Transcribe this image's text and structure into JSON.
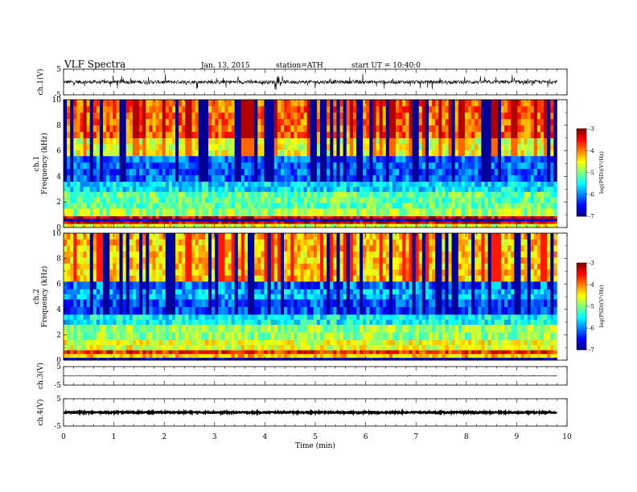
{
  "header": {
    "title": "VLF Spectra",
    "date": "Jan. 13, 2015",
    "station": "station=ATH",
    "start": "start UT =  10:40:0"
  },
  "chart_data": [
    {
      "type": "line",
      "ylabel": "ch.1(V)",
      "ylim": [
        -5,
        5
      ],
      "yticks": [
        "5",
        "-5"
      ],
      "xlim": [
        0,
        10
      ],
      "x_end_min": 9.8,
      "series": [
        {
          "values_description_free": true,
          "baseline": 0,
          "noise_amp": 0.7,
          "spike_amp": 2.8
        }
      ]
    },
    {
      "type": "heatmap",
      "ylabel": "ch.1\nFrequency  (kHz)",
      "ylim": [
        0,
        10
      ],
      "yticks": [
        "0",
        "2",
        "4",
        "6",
        "8",
        "10"
      ],
      "xlim": [
        0,
        10
      ],
      "x_end_min": 9.8,
      "colorbar": {
        "label": "log(PSD)(V²/Hz)",
        "range": [
          -7,
          -3
        ],
        "ticks": [
          "-3",
          "-4",
          "-5",
          "-6",
          "-7"
        ]
      },
      "bands": [
        {
          "f": [
            0,
            0.3
          ],
          "level": -4.6
        },
        {
          "f": [
            0.3,
            0.5
          ],
          "level": -3.3
        },
        {
          "f": [
            0.5,
            0.7
          ],
          "level": -6.8
        },
        {
          "f": [
            0.7,
            0.9
          ],
          "level": -3.4
        },
        {
          "f": [
            0.9,
            1.5
          ],
          "level": -4.9
        },
        {
          "f": [
            1.5,
            2.8
          ],
          "level": -5.1
        },
        {
          "f": [
            2.8,
            3.6
          ],
          "level": -5.6
        },
        {
          "f": [
            3.6,
            5.6
          ],
          "level": -6.1
        },
        {
          "f": [
            5.6,
            7.0
          ],
          "level": -4.6
        },
        {
          "f": [
            7.0,
            10.0
          ],
          "level": -3.9
        }
      ]
    },
    {
      "type": "heatmap",
      "ylabel": "ch.2\nFrequency  (kHz)",
      "ylim": [
        0,
        10
      ],
      "yticks": [
        "0",
        "2",
        "4",
        "6",
        "8",
        "10"
      ],
      "xlim": [
        0,
        10
      ],
      "x_end_min": 9.8,
      "colorbar": {
        "label": "log(PSD)(V²/Hz)",
        "range": [
          -7,
          -3
        ],
        "ticks": [
          "-3",
          "-4",
          "-5",
          "-6",
          "-7"
        ]
      },
      "bands": [
        {
          "f": [
            0,
            0.2
          ],
          "level": -6.8
        },
        {
          "f": [
            0.2,
            0.5
          ],
          "level": -4.3
        },
        {
          "f": [
            0.5,
            0.8
          ],
          "level": -3.6
        },
        {
          "f": [
            0.8,
            1.6
          ],
          "level": -4.6
        },
        {
          "f": [
            1.6,
            2.8
          ],
          "level": -4.9
        },
        {
          "f": [
            2.8,
            3.6
          ],
          "level": -5.5
        },
        {
          "f": [
            3.6,
            4.8
          ],
          "level": -6.2
        },
        {
          "f": [
            4.8,
            5.6
          ],
          "level": -5.8
        },
        {
          "f": [
            5.6,
            6.2
          ],
          "level": -6.3
        },
        {
          "f": [
            6.2,
            10.0
          ],
          "level": -4.3
        }
      ]
    },
    {
      "type": "line",
      "ylabel": "ch.3(V)",
      "ylim": [
        -5,
        5
      ],
      "yticks": [
        "5",
        "-5"
      ],
      "xlim": [
        0,
        10
      ],
      "x_end_min": 9.8,
      "series": [
        {
          "baseline": 0,
          "noise_amp": 0.12,
          "spike_amp": 0.3
        }
      ]
    },
    {
      "type": "line",
      "ylabel": "ch.4(V)",
      "ylim": [
        -5,
        5
      ],
      "yticks": [
        "5",
        "-5"
      ],
      "xlim": [
        0,
        10
      ],
      "x_end_min": 9.8,
      "series": [
        {
          "baseline": 0,
          "noise_amp": 0.25,
          "spike_amp": 0
        }
      ]
    }
  ],
  "xaxis": {
    "label": "Time  (min)",
    "ticks": [
      "0",
      "1",
      "2",
      "3",
      "4",
      "5",
      "6",
      "7",
      "8",
      "9",
      "10"
    ]
  }
}
